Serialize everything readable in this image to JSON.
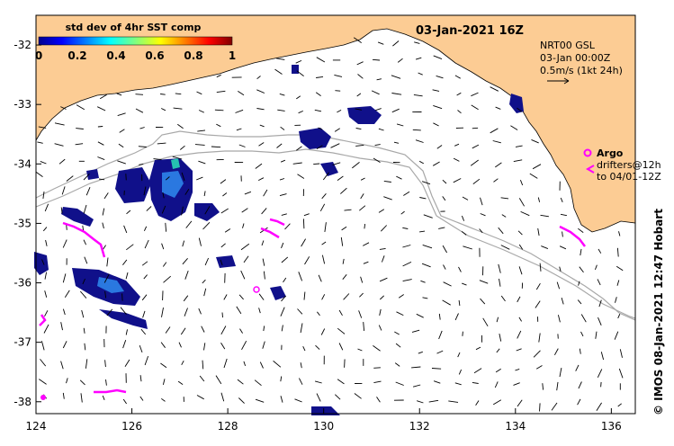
{
  "map": {
    "title": "03-Jan-2021 16Z",
    "colorbar": {
      "title": "std dev of 4hr SST comp",
      "ticks": [
        "0",
        "0.2",
        "0.4",
        "0.6",
        "0.8",
        "1"
      ],
      "range": [
        0,
        1
      ]
    },
    "info": {
      "line1": "NRT00 GSL",
      "line2": "03-Jan 00:00Z",
      "line3": "0.5m/s (1kt 24h)"
    },
    "argo_legend": {
      "label": "Argo",
      "line1": "drifters@12h",
      "line2": "to 04/01-12Z"
    },
    "credit": "© IMOS 08-Jan-2021 12:47 Hobart",
    "axes": {
      "x_ticks": [
        "124",
        "126",
        "128",
        "130",
        "132",
        "134",
        "136"
      ],
      "y_ticks": [
        "-32",
        "-33",
        "-34",
        "-35",
        "-36",
        "-37",
        "-38"
      ],
      "lon_range": [
        124,
        136.5
      ],
      "lat_range": [
        -31.5,
        -38.2
      ]
    },
    "colors": {
      "land": "#fccc94",
      "contour": "#a8a8a8",
      "argo": "#ff00ff",
      "patch_dark": "#10108a",
      "patch_mid": "#2060d8"
    }
  }
}
